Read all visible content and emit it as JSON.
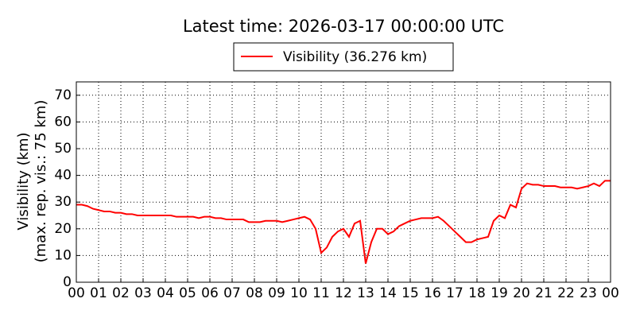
{
  "chart_data": {
    "type": "line",
    "title": "Latest time: 2026-03-17 00:00:00 UTC",
    "ylabel": [
      "Visibility (km)",
      "(max. rep. vis.: 75 km)"
    ],
    "x": [
      0,
      0.25,
      0.5,
      0.75,
      1,
      1.25,
      1.5,
      1.75,
      2,
      2.25,
      2.5,
      2.75,
      3,
      3.25,
      3.5,
      3.75,
      4,
      4.25,
      4.5,
      4.75,
      5,
      5.25,
      5.5,
      5.75,
      6,
      6.25,
      6.5,
      6.75,
      7,
      7.25,
      7.5,
      7.75,
      8,
      8.25,
      8.5,
      8.75,
      9,
      9.25,
      9.5,
      9.75,
      10,
      10.25,
      10.5,
      10.75,
      11,
      11.25,
      11.5,
      11.75,
      12,
      12.25,
      12.5,
      12.75,
      13,
      13.25,
      13.5,
      13.75,
      14,
      14.25,
      14.5,
      14.75,
      15,
      15.25,
      15.5,
      15.75,
      16,
      16.25,
      16.5,
      16.75,
      17,
      17.25,
      17.5,
      17.75,
      18,
      18.25,
      18.5,
      18.75,
      19,
      19.25,
      19.5,
      19.75,
      20,
      20.25,
      20.5,
      20.75,
      21,
      21.25,
      21.5,
      21.75,
      22,
      22.25,
      22.5,
      22.75,
      23,
      23.25,
      23.5,
      23.75,
      24
    ],
    "series": [
      {
        "name": "Visibility (36.276 km)",
        "color": "#ff0000",
        "values": [
          29,
          29,
          28.5,
          27.5,
          27,
          26.5,
          26.5,
          26,
          26,
          25.5,
          25.5,
          25,
          25,
          25,
          25,
          25,
          25,
          25,
          24.5,
          24.5,
          24.5,
          24.5,
          24,
          24.5,
          24.5,
          24,
          24,
          23.5,
          23.5,
          23.5,
          23.5,
          22.5,
          22.5,
          22.5,
          23,
          23,
          23,
          22.5,
          23,
          23.5,
          24,
          24.5,
          23.5,
          20,
          11,
          13,
          17,
          19,
          20,
          17,
          22,
          23,
          7,
          15,
          20,
          20,
          18,
          19,
          21,
          22,
          23,
          23.5,
          24,
          24,
          24,
          24.5,
          23,
          21,
          19,
          17,
          15,
          15,
          16,
          16.5,
          17,
          23,
          25,
          24,
          29,
          28,
          35,
          37,
          36.5,
          36.5,
          36,
          36,
          36,
          35.5,
          35.5,
          35.5,
          35,
          35.5,
          36,
          37,
          36,
          38,
          38
        ]
      }
    ],
    "xlim": [
      0,
      24
    ],
    "xticks": [
      {
        "value": 0,
        "label": "00"
      },
      {
        "value": 1,
        "label": "01"
      },
      {
        "value": 2,
        "label": "02"
      },
      {
        "value": 3,
        "label": "03"
      },
      {
        "value": 4,
        "label": "04"
      },
      {
        "value": 5,
        "label": "05"
      },
      {
        "value": 6,
        "label": "06"
      },
      {
        "value": 7,
        "label": "07"
      },
      {
        "value": 8,
        "label": "08"
      },
      {
        "value": 9,
        "label": "09"
      },
      {
        "value": 10,
        "label": "10"
      },
      {
        "value": 11,
        "label": "11"
      },
      {
        "value": 12,
        "label": "12"
      },
      {
        "value": 13,
        "label": "13"
      },
      {
        "value": 14,
        "label": "14"
      },
      {
        "value": 15,
        "label": "15"
      },
      {
        "value": 16,
        "label": "16"
      },
      {
        "value": 17,
        "label": "17"
      },
      {
        "value": 18,
        "label": "18"
      },
      {
        "value": 19,
        "label": "19"
      },
      {
        "value": 20,
        "label": "20"
      },
      {
        "value": 21,
        "label": "21"
      },
      {
        "value": 22,
        "label": "22"
      },
      {
        "value": 23,
        "label": "23"
      },
      {
        "value": 24,
        "label": "00"
      }
    ],
    "ylim": [
      0,
      75
    ],
    "yticks": [
      0,
      10,
      20,
      30,
      40,
      50,
      60,
      70
    ],
    "grid": true
  }
}
